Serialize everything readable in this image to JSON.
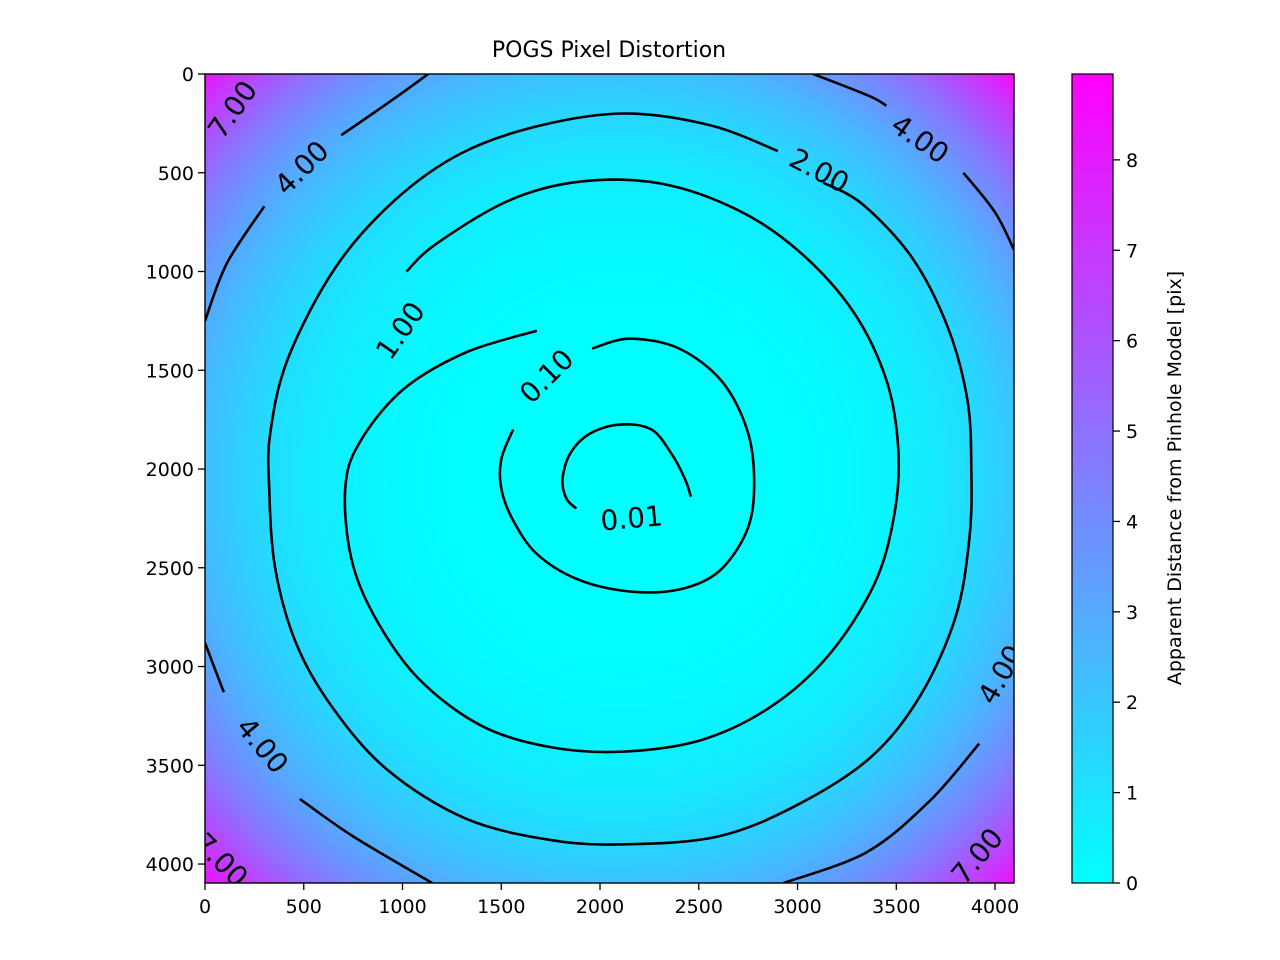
{
  "chart_data": {
    "type": "contour",
    "title": "POGS Pixel Distortion",
    "x_ticks": [
      0,
      500,
      1000,
      1500,
      2000,
      2500,
      3000,
      3500,
      4000
    ],
    "y_ticks": [
      0,
      500,
      1000,
      1500,
      2000,
      2500,
      3000,
      3500,
      4000
    ],
    "x_tick_labels": [
      "0",
      "500",
      "1000",
      "1500",
      "2000",
      "2500",
      "3000",
      "3500",
      "4000"
    ],
    "y_tick_labels": [
      "0",
      "500",
      "1000",
      "1500",
      "2000",
      "2500",
      "3000",
      "3500",
      "4000"
    ],
    "xlim": [
      0,
      4096
    ],
    "ylim": [
      4096,
      0
    ],
    "y_inverted": true,
    "colormap": {
      "low": "#00ffff",
      "high": "#ff00ff",
      "name": "cool"
    },
    "colorbar": {
      "label": "Apparent Distance from Pinhole Model [pix]",
      "range": [
        0,
        8.95
      ],
      "ticks": [
        0,
        1,
        2,
        3,
        4,
        5,
        6,
        7,
        8
      ],
      "tick_labels": [
        "0",
        "1",
        "2",
        "3",
        "4",
        "5",
        "6",
        "7",
        "8"
      ]
    },
    "field_model": {
      "center": [
        2130,
        2050
      ],
      "corner_values": {
        "top-left": 8.0,
        "top-right": 8.9,
        "bottom-left": 8.2,
        "bottom-right": 8.6
      }
    },
    "contour_levels": [
      {
        "level": 0.01,
        "label": "0.01",
        "path": [
          [
            2460,
            2140
          ],
          [
            2430,
            2050
          ],
          [
            2360,
            1920
          ],
          [
            2260,
            1800
          ],
          [
            2100,
            1775
          ],
          [
            1950,
            1820
          ],
          [
            1850,
            1920
          ],
          [
            1810,
            2050
          ],
          [
            1830,
            2150
          ],
          [
            1880,
            2200
          ]
        ],
        "labels": [
          {
            "text": "0.01",
            "x": 2160,
            "y": 2250,
            "angle": -5
          }
        ]
      },
      {
        "level": 0.1,
        "label": "0.10",
        "path": [
          [
            1960,
            1390
          ],
          [
            2150,
            1340
          ],
          [
            2400,
            1390
          ],
          [
            2620,
            1560
          ],
          [
            2750,
            1820
          ],
          [
            2780,
            2100
          ],
          [
            2740,
            2320
          ],
          [
            2600,
            2520
          ],
          [
            2400,
            2610
          ],
          [
            2150,
            2620
          ],
          [
            1890,
            2560
          ],
          [
            1680,
            2430
          ],
          [
            1560,
            2260
          ],
          [
            1500,
            2100
          ],
          [
            1500,
            1950
          ],
          [
            1560,
            1800
          ]
        ],
        "labels": [
          {
            "text": "0.10",
            "x": 1730,
            "y": 1530,
            "angle": -45
          }
        ]
      },
      {
        "level": 1.0,
        "label": "1.00",
        "path": [
          [
            1680,
            1300
          ],
          [
            1320,
            1410
          ],
          [
            1000,
            1600
          ],
          [
            780,
            1870
          ],
          [
            710,
            2100
          ],
          [
            740,
            2450
          ],
          [
            860,
            2750
          ],
          [
            1080,
            3060
          ],
          [
            1400,
            3300
          ],
          [
            1760,
            3410
          ],
          [
            2130,
            3430
          ],
          [
            2520,
            3370
          ],
          [
            2870,
            3200
          ],
          [
            3160,
            2940
          ],
          [
            3390,
            2580
          ],
          [
            3490,
            2230
          ],
          [
            3510,
            1900
          ],
          [
            3450,
            1550
          ],
          [
            3280,
            1200
          ],
          [
            3010,
            900
          ],
          [
            2700,
            690
          ],
          [
            2310,
            555
          ],
          [
            1900,
            545
          ],
          [
            1540,
            640
          ],
          [
            1170,
            860
          ],
          [
            1020,
            1000
          ]
        ],
        "labels": [
          {
            "text": "1.00",
            "x": 990,
            "y": 1300,
            "angle": -55
          }
        ]
      },
      {
        "level": 2.0,
        "label": "2.00",
        "path": [
          [
            2900,
            390
          ],
          [
            2560,
            260
          ],
          [
            2130,
            200
          ],
          [
            1700,
            260
          ],
          [
            1300,
            400
          ],
          [
            960,
            640
          ],
          [
            660,
            980
          ],
          [
            420,
            1440
          ],
          [
            330,
            1820
          ],
          [
            325,
            2100
          ],
          [
            355,
            2500
          ],
          [
            460,
            2880
          ],
          [
            640,
            3200
          ],
          [
            920,
            3520
          ],
          [
            1320,
            3770
          ],
          [
            1760,
            3880
          ],
          [
            2130,
            3900
          ],
          [
            2600,
            3860
          ],
          [
            3000,
            3700
          ],
          [
            3370,
            3460
          ],
          [
            3620,
            3150
          ],
          [
            3800,
            2750
          ],
          [
            3870,
            2350
          ],
          [
            3880,
            2000
          ],
          [
            3860,
            1650
          ],
          [
            3760,
            1280
          ],
          [
            3580,
            930
          ],
          [
            3330,
            660
          ],
          [
            3130,
            550
          ]
        ],
        "labels": [
          {
            "text": "2.00",
            "x": 3110,
            "y": 490,
            "angle": 28
          }
        ]
      },
      {
        "level": 4.0,
        "label": "4.00",
        "path": [
          [
            0,
            1250
          ],
          [
            110,
            960
          ],
          [
            300,
            670
          ]
        ],
        "labels": [
          {
            "text": "4.00",
            "x": 490,
            "y": 475,
            "angle": -45
          }
        ]
      },
      {
        "level": 4.0,
        "label": "4.00",
        "path": [
          [
            690,
            310
          ],
          [
            950,
            130
          ],
          [
            1130,
            0
          ]
        ],
        "labels": []
      },
      {
        "level": 4.0,
        "label": "4.00",
        "path": [
          [
            3080,
            0
          ],
          [
            3360,
            110
          ],
          [
            3450,
            160
          ]
        ],
        "labels": [
          {
            "text": "4.00",
            "x": 3620,
            "y": 330,
            "angle": 35
          }
        ]
      },
      {
        "level": 4.0,
        "label": "4.00",
        "path": [
          [
            3840,
            500
          ],
          [
            4000,
            700
          ],
          [
            4096,
            890
          ]
        ],
        "labels": []
      },
      {
        "level": 4.0,
        "label": "4.00",
        "path": [
          [
            0,
            2880
          ],
          [
            95,
            3130
          ]
        ],
        "labels": [
          {
            "text": "4.00",
            "x": 290,
            "y": 3400,
            "angle": 50
          }
        ]
      },
      {
        "level": 4.0,
        "label": "4.00",
        "path": [
          [
            480,
            3670
          ],
          [
            750,
            3860
          ],
          [
            1150,
            4096
          ]
        ],
        "labels": []
      },
      {
        "level": 4.0,
        "label": "4.00",
        "path": [
          [
            2930,
            4096
          ],
          [
            3350,
            3940
          ],
          [
            3670,
            3680
          ],
          [
            3920,
            3390
          ]
        ],
        "labels": [
          {
            "text": "4.00",
            "x": 4030,
            "y": 3040,
            "angle": -60
          }
        ]
      },
      {
        "level": 7.0,
        "label": "7.00",
        "path": [],
        "labels": [
          {
            "text": "7.00",
            "x": 140,
            "y": 180,
            "angle": -55
          },
          {
            "text": "7.00",
            "x": 80,
            "y": 3980,
            "angle": 45
          },
          {
            "text": "7.00",
            "x": 3910,
            "y": 3960,
            "angle": -50
          }
        ]
      }
    ]
  }
}
